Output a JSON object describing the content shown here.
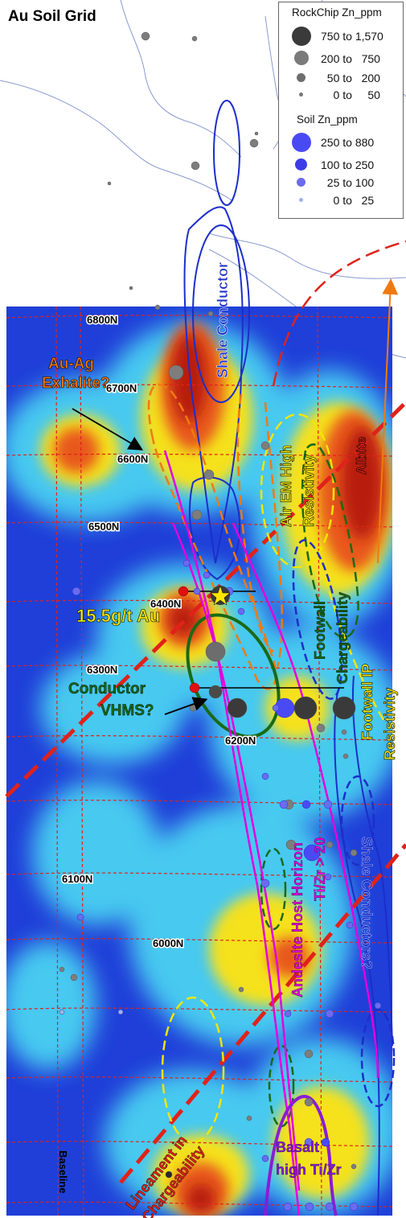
{
  "title": "Au Soil Grid",
  "legend": {
    "rock_title": "RockChip Zn_ppm",
    "rock_classes": [
      {
        "label": "750 to 1,570",
        "color": "#3a3a3a"
      },
      {
        "label": "200 to   750",
        "color": "#7a7a7a"
      },
      {
        "label": "  50 to   200",
        "color": "#6e6e6e"
      },
      {
        "label": "    0 to     50",
        "color": "#777777"
      }
    ],
    "soil_title": "Soil Zn_ppm",
    "soil_classes": [
      {
        "label": "250 to 880",
        "color": "#4a4af5"
      },
      {
        "label": "100 to 250",
        "color": "#3b3be8"
      },
      {
        "label": "  25 to 100",
        "color": "#6b6bee"
      },
      {
        "label": "    0 to   25",
        "color": "#9fb3e8"
      }
    ]
  },
  "northings": [
    "6800N",
    "6700N",
    "6600N",
    "6500N",
    "6400N",
    "6300N",
    "6200N",
    "6100N",
    "6000N"
  ],
  "baseline_label": "Baseline",
  "annotations": {
    "au_ag_exhalite_1": "Au-Ag",
    "au_ag_exhalite_2": "Exhalite?",
    "shale_conductor": "Shale Conductor",
    "albite": "Albite",
    "air_em_1": "Air EM High",
    "air_em_2": "Resistivity",
    "footwall_chargeability_1": "Footwall",
    "footwall_chargeability_2": "Chargeability",
    "gold_result": "15.5g/t Au",
    "conductor_1": "Conductor",
    "conductor_2": "VHMS?",
    "footwall_ip_1": "Footwall IP",
    "footwall_ip_2": "Resistivity",
    "andesite_1": "Andesite Host Horizon",
    "andesite_2": "Ti/Zr > 20",
    "shale_conductors": "Shale Conductors?",
    "lineament_1": "Lineament in",
    "lineament_2": "Chargeability",
    "basalt_1": "Basalt",
    "basalt_2": "high Ti/Zr"
  },
  "colors": {
    "low": "#1f3fd8",
    "mid": "#46c9f0",
    "high": "#f5e11c",
    "peak": "#c71b0f",
    "orange_text": "#f07a10",
    "green_text": "#1a6a16",
    "yellow_text": "#f3e600",
    "magenta": "#e400e0",
    "purple": "#8a1cd6"
  }
}
